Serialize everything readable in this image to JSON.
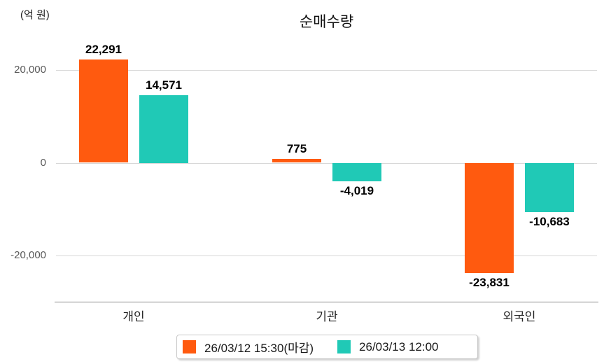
{
  "chart": {
    "title": "순매수량",
    "unit": "(억 원)"
  },
  "chart_data": {
    "type": "bar",
    "title": "순매수량",
    "ylabel": "(억 원)",
    "categories": [
      "개인",
      "기관",
      "외국인"
    ],
    "series": [
      {
        "name": "26/03/12 15:30(마감)",
        "color": "#ff5a0f",
        "values": [
          22291,
          775,
          -23831
        ],
        "value_labels": [
          "22,291",
          "775",
          "-23,831"
        ]
      },
      {
        "name": "26/03/13 12:00",
        "color": "#20c9b6",
        "values": [
          14571,
          -4019,
          -10683
        ],
        "value_labels": [
          "14,571",
          "-4,019",
          "-10,683"
        ]
      }
    ],
    "ylim": [
      -30000,
      23000
    ],
    "yticks": [
      {
        "value": 20000,
        "label": "20,000"
      },
      {
        "value": 0,
        "label": "0"
      },
      {
        "value": -20000,
        "label": "-20,000"
      }
    ],
    "grid": true,
    "legend_position": "bottom-center"
  }
}
